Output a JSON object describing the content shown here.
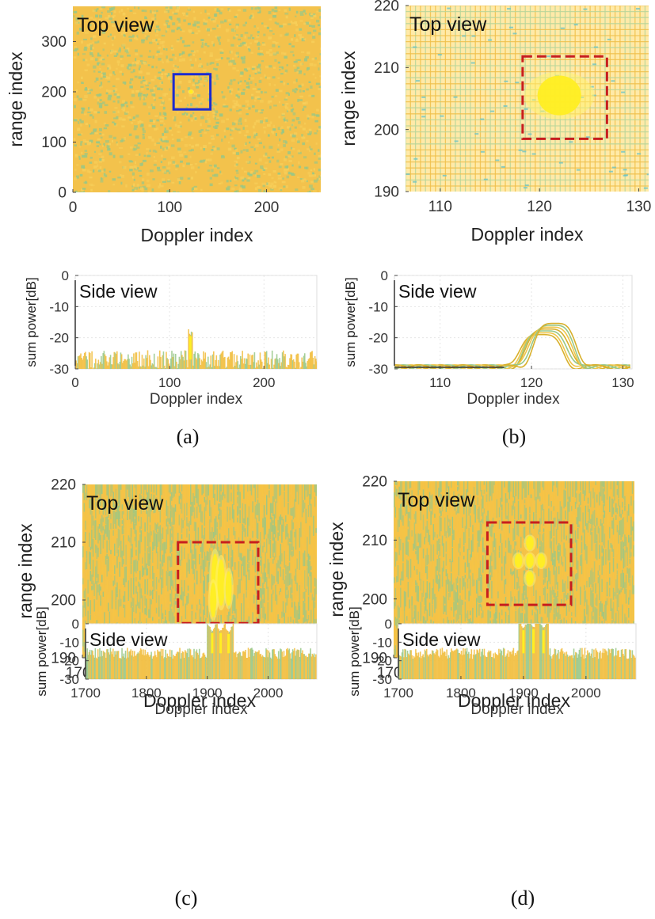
{
  "figure": {
    "panels": [
      {
        "caption": "(a)"
      },
      {
        "caption": "(b)"
      },
      {
        "caption": "(c)"
      },
      {
        "caption": "(d)"
      }
    ]
  },
  "colors": {
    "field_main": "#f3c24c",
    "field_alt": "#97c787",
    "highlight": "#ffee22",
    "noise_line": "#6fc4c4",
    "solid_box": "#1b2bd0",
    "dashed_box": "#c71e1e"
  },
  "chart_data": [
    {
      "panel": "a",
      "view": "top",
      "type": "heatmap",
      "annotation": "Top view",
      "xlabel": "Doppler index",
      "ylabel": "range index",
      "xlim": [
        0,
        256
      ],
      "ylim": [
        0,
        370
      ],
      "xticks": [
        0,
        100,
        200
      ],
      "yticks": [
        0,
        100,
        200,
        300
      ],
      "texture": "fine-noise",
      "hotspots": [
        {
          "x": 122,
          "y": 200,
          "sx": 2,
          "sy": 4
        }
      ],
      "box": {
        "style": "solid",
        "x": [
          104,
          142
        ],
        "y": [
          165,
          235
        ]
      }
    },
    {
      "panel": "b",
      "view": "top",
      "type": "heatmap",
      "annotation": "Top view",
      "xlabel": "Doppler index",
      "ylabel": "range index",
      "xlim": [
        106.5,
        131
      ],
      "ylim": [
        190,
        220
      ],
      "xticks": [
        110,
        120,
        130
      ],
      "yticks": [
        190,
        200,
        210,
        220
      ],
      "texture": "coarse-grid",
      "hotspots": [
        {
          "x": 122,
          "y": 205.5,
          "sx": 2.2,
          "sy": 3.2
        }
      ],
      "box": {
        "style": "dashed",
        "x": [
          118.3,
          126.8
        ],
        "y": [
          198.5,
          211.8
        ]
      }
    },
    {
      "panel": "c",
      "view": "top",
      "type": "heatmap",
      "annotation": "Top view",
      "xlabel": "Doppler index",
      "ylabel": "range index",
      "xlim": [
        1700,
        2080
      ],
      "ylim": [
        190,
        220
      ],
      "xticks": [
        1700,
        1800,
        1900,
        2000
      ],
      "yticks": [
        190,
        200,
        210,
        220
      ],
      "texture": "vertical-streaks",
      "hotspots": [
        {
          "x": 1915,
          "y": 203.5,
          "sx": 6,
          "sy": 4.5
        },
        {
          "x": 1925,
          "y": 203,
          "sx": 6,
          "sy": 4
        },
        {
          "x": 1937,
          "y": 202,
          "sx": 5,
          "sy": 3
        },
        {
          "x": 1912,
          "y": 200,
          "sx": 5,
          "sy": 3
        }
      ],
      "box": {
        "style": "dashed",
        "x": [
          1855,
          1985
        ],
        "y": [
          196,
          210
        ]
      }
    },
    {
      "panel": "d",
      "view": "top",
      "type": "heatmap",
      "annotation": "Top view",
      "xlabel": "Doppler index",
      "ylabel": "range index",
      "xlim": [
        1700,
        2080
      ],
      "ylim": [
        190,
        220
      ],
      "xticks": [
        1700,
        1800,
        1900,
        2000
      ],
      "yticks": [
        190,
        200,
        210,
        220
      ],
      "texture": "vertical-streaks",
      "hotspots": [
        {
          "x": 1897,
          "y": 206.5,
          "sx": 6,
          "sy": 1.2
        },
        {
          "x": 1915,
          "y": 206.5,
          "sx": 6,
          "sy": 1.2
        },
        {
          "x": 1933,
          "y": 206.5,
          "sx": 6,
          "sy": 1.2
        },
        {
          "x": 1915,
          "y": 209.5,
          "sx": 6,
          "sy": 1.2
        },
        {
          "x": 1915,
          "y": 203.5,
          "sx": 6,
          "sy": 1.2
        }
      ],
      "box": {
        "style": "dashed",
        "x": [
          1848,
          1980
        ],
        "y": [
          199,
          213
        ]
      }
    },
    {
      "panel": "a",
      "view": "side",
      "type": "area",
      "annotation": "Side view",
      "xlabel": "Doppler index",
      "ylabel": "sum power[dB]",
      "xlim": [
        0,
        256
      ],
      "ylim": [
        -30,
        0
      ],
      "xticks": [
        0,
        100,
        200
      ],
      "yticks": [
        0,
        -10,
        -20,
        -30
      ],
      "style": "noise-floor",
      "floor": -27,
      "floor_spread": 3,
      "peaks": [
        {
          "x": 122,
          "level": -19.5,
          "width": 1.5
        }
      ]
    },
    {
      "panel": "b",
      "view": "side",
      "type": "line",
      "annotation": "Side view",
      "xlabel": "Doppler index",
      "ylabel": "sum power[dB]",
      "xlim": [
        105,
        131
      ],
      "ylim": [
        -30,
        0
      ],
      "xticks": [
        110,
        120,
        130
      ],
      "yticks": [
        0,
        -10,
        -20,
        -30
      ],
      "style": "curves",
      "floor": -29.5,
      "peaks": [
        {
          "x": 121.8,
          "level": -19,
          "width": 2.2
        }
      ]
    },
    {
      "panel": "c",
      "view": "side",
      "type": "area",
      "annotation": "Side view",
      "xlabel": "Doppler index",
      "ylabel": "sum power[dB]",
      "xlim": [
        1700,
        2080
      ],
      "ylim": [
        -30,
        0
      ],
      "xticks": [
        1700,
        1800,
        1900,
        2000
      ],
      "yticks": [
        0,
        -10,
        -20,
        -30
      ],
      "style": "noise-floor",
      "floor": -16,
      "floor_spread": 3,
      "peaks": [
        {
          "x": 1908,
          "level": -5,
          "width": 5
        },
        {
          "x": 1922,
          "level": -5,
          "width": 5
        },
        {
          "x": 1935,
          "level": -5.5,
          "width": 5
        }
      ]
    },
    {
      "panel": "d",
      "view": "side",
      "type": "area",
      "annotation": "Side view",
      "xlabel": "Doppler index",
      "ylabel": "sum power[dB]",
      "xlim": [
        1700,
        2080
      ],
      "ylim": [
        -30,
        0
      ],
      "xticks": [
        1700,
        1800,
        1900,
        2000
      ],
      "yticks": [
        0,
        -10,
        -20,
        -30
      ],
      "style": "noise-floor",
      "floor": -16,
      "floor_spread": 3,
      "peaks": [
        {
          "x": 1900,
          "level": -3.5,
          "width": 5
        },
        {
          "x": 1916,
          "level": -3,
          "width": 5
        },
        {
          "x": 1932,
          "level": -3.5,
          "width": 5
        }
      ]
    }
  ]
}
